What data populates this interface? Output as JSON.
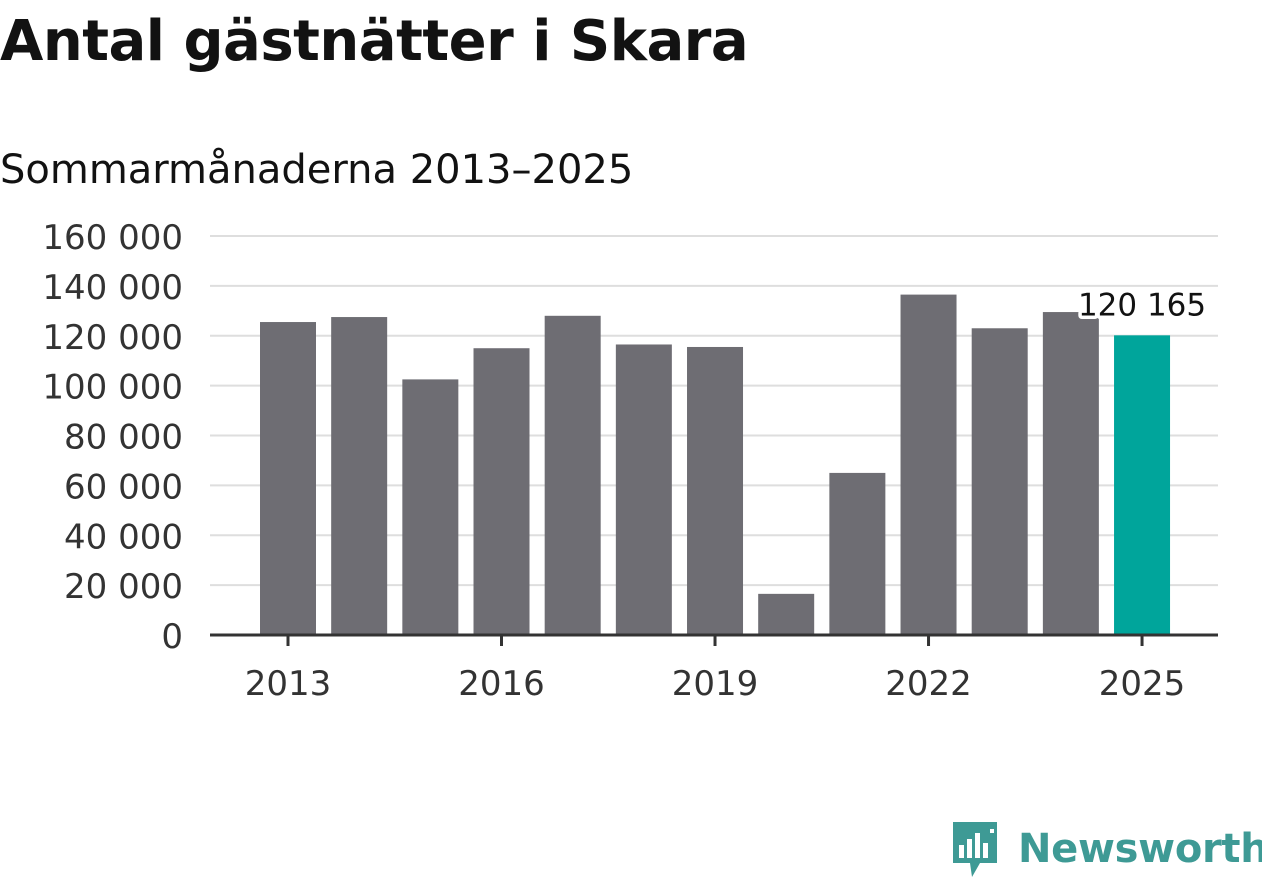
{
  "header": {
    "title": "Antal gästnätter i Skara",
    "subtitle": "Sommarmånaderna 2013–2025"
  },
  "brand": {
    "name": "Newsworthy",
    "icon": "newsworthy-logo-icon",
    "color": "#3e9a95"
  },
  "colors": {
    "bar": "#6e6d73",
    "highlight": "#00a59b",
    "grid": "#dedede",
    "axis": "#333333"
  },
  "chart_data": {
    "type": "bar",
    "title": "Antal gästnätter i Skara",
    "subtitle": "Sommarmånaderna 2013–2025",
    "xlabel": "",
    "ylabel": "",
    "categories": [
      "2013",
      "2014",
      "2015",
      "2016",
      "2017",
      "2018",
      "2019",
      "2020",
      "2021",
      "2022",
      "2023",
      "2024",
      "2025"
    ],
    "values": [
      125500,
      127500,
      102500,
      115000,
      128000,
      116500,
      115500,
      16500,
      65000,
      136500,
      123000,
      129500,
      120165
    ],
    "highlight_index": 12,
    "highlight_label": "120 165",
    "ylim": [
      0,
      160000
    ],
    "yticks": [
      0,
      20000,
      40000,
      60000,
      80000,
      100000,
      120000,
      140000,
      160000
    ],
    "ytick_labels": [
      "0",
      "20 000",
      "40 000",
      "60 000",
      "80 000",
      "100 000",
      "120 000",
      "140 000",
      "160 000"
    ],
    "xtick_labels": [
      "2013",
      "2016",
      "2019",
      "2022",
      "2025"
    ],
    "grid": true,
    "legend": "none"
  }
}
